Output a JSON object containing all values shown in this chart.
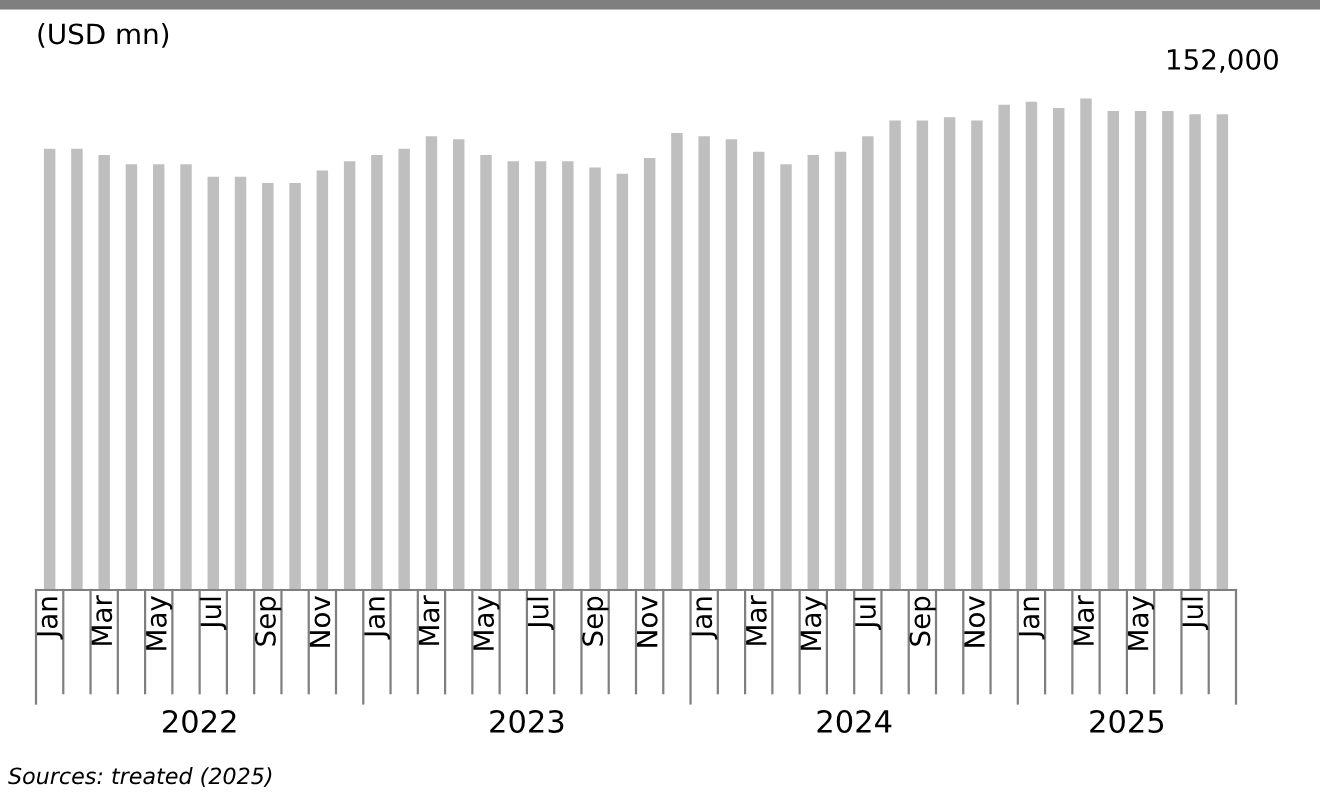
{
  "chart_data": {
    "type": "bar",
    "ylabel": "(USD mn)",
    "color": "#bfbfbf",
    "categories": [
      "Jan",
      null,
      "Mar",
      null,
      "May",
      null,
      "Jul",
      null,
      "Sep",
      null,
      "Nov",
      null,
      "Jan",
      null,
      "Mar",
      null,
      "May",
      null,
      "Jul",
      null,
      "Sep",
      null,
      "Nov",
      null,
      "Jan",
      null,
      "Mar",
      null,
      "May",
      null,
      "Jul",
      null,
      "Sep",
      null,
      "Nov",
      null,
      "Jan",
      null,
      "Mar",
      null,
      "May",
      null,
      "Jul",
      null
    ],
    "values": [
      141000,
      141000,
      139000,
      136000,
      136000,
      136000,
      132000,
      132000,
      130000,
      130000,
      134000,
      137000,
      139000,
      141000,
      145000,
      144000,
      139000,
      137000,
      137000,
      137000,
      135000,
      133000,
      138000,
      146000,
      145000,
      144000,
      140000,
      136000,
      139000,
      140000,
      145000,
      150000,
      150000,
      151000,
      150000,
      155000,
      156000,
      154000,
      157000,
      153000,
      153000,
      153000,
      152000,
      152000
    ],
    "value_labels": [
      null,
      null,
      null,
      null,
      null,
      null,
      null,
      null,
      null,
      null,
      null,
      null,
      null,
      null,
      null,
      null,
      null,
      null,
      null,
      null,
      null,
      null,
      null,
      null,
      null,
      null,
      null,
      null,
      null,
      null,
      null,
      null,
      null,
      null,
      null,
      null,
      null,
      null,
      null,
      null,
      null,
      null,
      null,
      "152,000"
    ],
    "annotations": [
      "2022",
      "2023",
      "2024",
      "2025",
      "Sources: treated (2025)"
    ],
    "legend": false
  }
}
